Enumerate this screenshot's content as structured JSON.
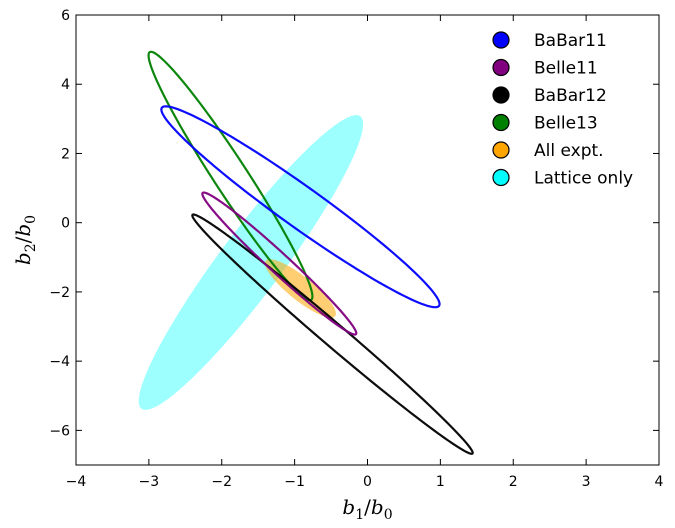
{
  "chart_data": {
    "type": "contour-ellipses",
    "xlabel": "b_1/b_0",
    "ylabel": "b_2/b_0",
    "xlabel_parts": {
      "var": "b",
      "sub": "1",
      "sep": "/",
      "den": "b",
      "densub": "0"
    },
    "ylabel_parts": {
      "var": "b",
      "sub": "2",
      "sep": "/",
      "den": "b",
      "densub": "0"
    },
    "xlim": [
      -4,
      4
    ],
    "ylim": [
      -7,
      6
    ],
    "xticks": [
      "−4",
      "−3",
      "−2",
      "−1",
      "0",
      "1",
      "2",
      "3",
      "4"
    ],
    "yticks": [
      "6",
      "4",
      "2",
      "0",
      "−2",
      "−4",
      "−6"
    ],
    "legend_position": "top-right",
    "series": [
      {
        "name": "Lattice only",
        "color": "#00FFFF",
        "filled": true,
        "opacity": 0.38,
        "center": [
          -1.6,
          -1.15
        ],
        "semi_major": 4.5,
        "semi_minor": 0.5,
        "angle_deg": 71
      },
      {
        "name": "BaBar11",
        "color": "#0000FF",
        "filled": false,
        "center": [
          -0.92,
          0.46
        ],
        "semi_major": 3.45,
        "semi_minor": 0.4,
        "angle_deg": -57
      },
      {
        "name": "Belle11",
        "color": "#800080",
        "filled": false,
        "center": [
          -1.21,
          -1.18
        ],
        "semi_major": 2.3,
        "semi_minor": 0.18,
        "angle_deg": -63
      },
      {
        "name": "BaBar12",
        "color": "#000000",
        "filled": false,
        "center": [
          -0.48,
          -3.22
        ],
        "semi_major": 3.95,
        "semi_minor": 0.21,
        "angle_deg": -61
      },
      {
        "name": "Belle13",
        "color": "#008000",
        "filled": false,
        "center": [
          -1.88,
          1.35
        ],
        "semi_major": 3.75,
        "semi_minor": 0.26,
        "angle_deg": -73
      },
      {
        "name": "All expt.",
        "color": "#FFA500",
        "filled": true,
        "opacity": 0.55,
        "center": [
          -0.92,
          -1.9
        ],
        "semi_major": 0.95,
        "semi_minor": 0.22,
        "angle_deg": -62
      }
    ],
    "legend_order": [
      "BaBar11",
      "Belle11",
      "BaBar12",
      "Belle13",
      "All expt.",
      "Lattice only"
    ]
  }
}
